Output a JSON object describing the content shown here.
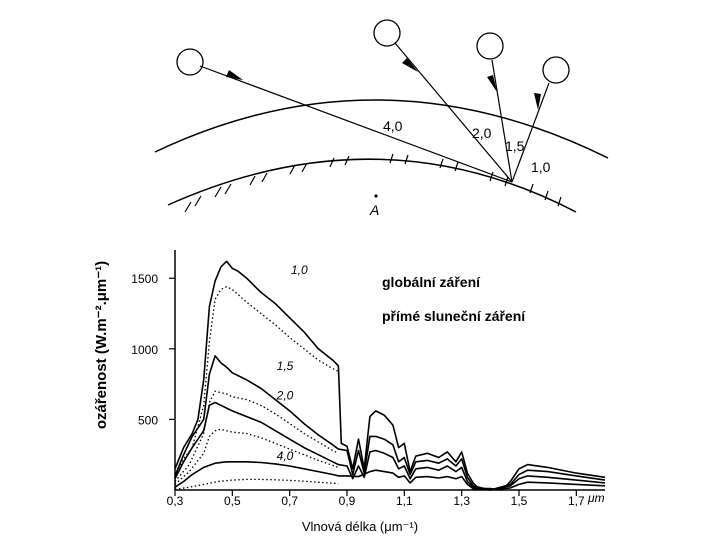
{
  "top_figure": {
    "air_mass_labels": [
      "4,0",
      "2,0",
      "1,5",
      "1,0"
    ],
    "observer_label": "A"
  },
  "chart_data": {
    "type": "line",
    "ylabel": "ozářenost  (W.m⁻².μm⁻¹)",
    "xlabel": "Vlnová délka   (μm⁻¹)",
    "x_ticks": [
      "0,3",
      "0,5",
      "0,7",
      "0,9",
      "1,1",
      "1,3",
      "1,5",
      "1,7"
    ],
    "x_unit": "μm",
    "y_ticks": [
      "500",
      "1000",
      "1500"
    ],
    "xlim": [
      0.3,
      1.8
    ],
    "ylim": [
      0,
      1700
    ],
    "legend": [
      {
        "label": "globální záření",
        "style": "solid"
      },
      {
        "label": "přímé sluneční záření",
        "style": "dotted"
      }
    ],
    "series": [
      {
        "name": "1,0",
        "style": "solid",
        "x": [
          0.3,
          0.33,
          0.36,
          0.38,
          0.4,
          0.42,
          0.44,
          0.46,
          0.48,
          0.5,
          0.52,
          0.55,
          0.6,
          0.65,
          0.7,
          0.75,
          0.8,
          0.85,
          0.87,
          0.88,
          0.9,
          0.92,
          0.94,
          0.96,
          0.98,
          1.0,
          1.03,
          1.06,
          1.08,
          1.1,
          1.12,
          1.14,
          1.18,
          1.22,
          1.25,
          1.28,
          1.3,
          1.32,
          1.34,
          1.36,
          1.4,
          1.44,
          1.47,
          1.5,
          1.53,
          1.6,
          1.7,
          1.8
        ],
        "y": [
          150,
          300,
          400,
          500,
          780,
          1300,
          1480,
          1580,
          1620,
          1570,
          1550,
          1500,
          1400,
          1320,
          1220,
          1120,
          1000,
          920,
          880,
          330,
          310,
          150,
          360,
          150,
          520,
          560,
          530,
          460,
          300,
          330,
          130,
          240,
          260,
          230,
          270,
          200,
          270,
          120,
          50,
          10,
          10,
          0,
          60,
          150,
          180,
          160,
          120,
          90
        ]
      },
      {
        "name": "1,0 direct",
        "style": "dotted",
        "x": [
          0.3,
          0.33,
          0.36,
          0.4,
          0.42,
          0.44,
          0.46,
          0.48,
          0.5,
          0.55,
          0.6,
          0.65,
          0.7,
          0.75,
          0.8,
          0.85,
          0.87
        ],
        "y": [
          100,
          220,
          300,
          600,
          1050,
          1350,
          1420,
          1440,
          1420,
          1330,
          1250,
          1170,
          1080,
          1000,
          920,
          860,
          840
        ]
      },
      {
        "name": "1,5",
        "style": "solid",
        "x": [
          0.3,
          0.33,
          0.36,
          0.4,
          0.42,
          0.44,
          0.46,
          0.48,
          0.5,
          0.55,
          0.6,
          0.65,
          0.7,
          0.75,
          0.8,
          0.85,
          0.87,
          0.9,
          0.92,
          0.94,
          0.96,
          0.98,
          1.0,
          1.03,
          1.06,
          1.08,
          1.1,
          1.12,
          1.14,
          1.18,
          1.22,
          1.25,
          1.28,
          1.3,
          1.32,
          1.34,
          1.4,
          1.47,
          1.5,
          1.53,
          1.6,
          1.7,
          1.8
        ],
        "y": [
          100,
          250,
          380,
          500,
          820,
          950,
          900,
          870,
          830,
          780,
          720,
          640,
          560,
          470,
          390,
          320,
          290,
          280,
          110,
          280,
          120,
          380,
          380,
          360,
          320,
          200,
          230,
          110,
          200,
          210,
          190,
          220,
          170,
          220,
          90,
          30,
          0,
          40,
          110,
          140,
          130,
          100,
          70
        ]
      },
      {
        "name": "1,5 direct",
        "style": "dotted",
        "x": [
          0.3,
          0.35,
          0.4,
          0.42,
          0.44,
          0.46,
          0.48,
          0.5,
          0.55,
          0.6,
          0.65,
          0.7,
          0.75,
          0.8,
          0.85,
          0.87
        ],
        "y": [
          60,
          180,
          400,
          620,
          700,
          690,
          680,
          660,
          640,
          600,
          540,
          470,
          400,
          340,
          280,
          260
        ]
      },
      {
        "name": "2,0",
        "style": "solid",
        "x": [
          0.3,
          0.33,
          0.36,
          0.4,
          0.42,
          0.44,
          0.46,
          0.48,
          0.5,
          0.55,
          0.6,
          0.65,
          0.7,
          0.75,
          0.8,
          0.85,
          0.87,
          0.9,
          0.92,
          0.94,
          0.96,
          0.98,
          1.0,
          1.03,
          1.06,
          1.08,
          1.1,
          1.12,
          1.14,
          1.18,
          1.22,
          1.25,
          1.28,
          1.3,
          1.32,
          1.34,
          1.4,
          1.47,
          1.5,
          1.53,
          1.6,
          1.7,
          1.8
        ],
        "y": [
          80,
          200,
          300,
          420,
          600,
          620,
          600,
          580,
          560,
          520,
          480,
          420,
          360,
          300,
          250,
          200,
          180,
          170,
          80,
          170,
          90,
          270,
          280,
          260,
          230,
          150,
          170,
          80,
          150,
          160,
          140,
          170,
          130,
          160,
          60,
          20,
          0,
          30,
          80,
          100,
          90,
          70,
          50
        ]
      },
      {
        "name": "2,0 direct",
        "style": "dotted",
        "x": [
          0.3,
          0.35,
          0.4,
          0.42,
          0.44,
          0.46,
          0.48,
          0.5,
          0.55,
          0.6,
          0.65,
          0.7,
          0.75,
          0.8,
          0.85,
          0.87
        ],
        "y": [
          40,
          130,
          260,
          380,
          420,
          430,
          420,
          410,
          400,
          370,
          330,
          290,
          250,
          210,
          175,
          160
        ]
      },
      {
        "name": "4,0",
        "style": "solid",
        "x": [
          0.3,
          0.33,
          0.36,
          0.4,
          0.44,
          0.48,
          0.5,
          0.55,
          0.6,
          0.65,
          0.7,
          0.75,
          0.8,
          0.85,
          0.87,
          0.9,
          0.94,
          0.98,
          1.0,
          1.03,
          1.06,
          1.08,
          1.1,
          1.12,
          1.14,
          1.18,
          1.22,
          1.25,
          1.28,
          1.3,
          1.32,
          1.34,
          1.4,
          1.47,
          1.5,
          1.53,
          1.6,
          1.7,
          1.8
        ],
        "y": [
          20,
          60,
          110,
          160,
          190,
          200,
          200,
          200,
          195,
          185,
          170,
          150,
          130,
          110,
          100,
          100,
          95,
          130,
          140,
          130,
          120,
          90,
          100,
          50,
          90,
          95,
          85,
          95,
          80,
          95,
          40,
          10,
          0,
          15,
          40,
          55,
          50,
          40,
          30
        ]
      },
      {
        "name": "4,0 direct",
        "style": "dotted",
        "x": [
          0.3,
          0.35,
          0.4,
          0.45,
          0.5,
          0.55,
          0.6,
          0.65,
          0.7,
          0.75,
          0.8,
          0.85,
          0.87
        ],
        "y": [
          5,
          20,
          40,
          60,
          70,
          75,
          75,
          72,
          68,
          62,
          55,
          48,
          45
        ]
      }
    ],
    "curve_labels": [
      "1,0",
      "1,5",
      "2,0",
      "4,0"
    ]
  }
}
